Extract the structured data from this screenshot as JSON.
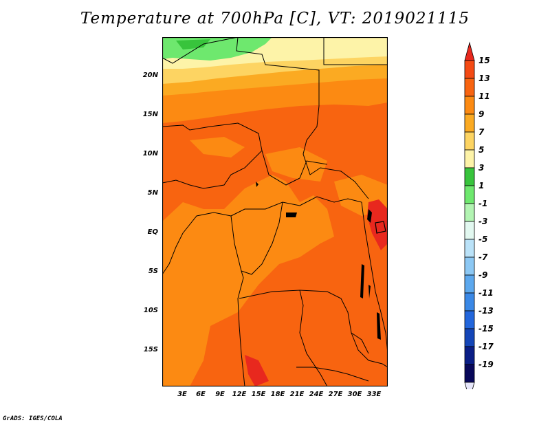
{
  "title": "Temperature at 700hPa [C], VT: 2019021115",
  "credit": "GrADS: IGES/COLA",
  "lat_labels": [
    "20N",
    "15N",
    "10N",
    "5N",
    "EQ",
    "5S",
    "10S",
    "15S"
  ],
  "lon_labels": [
    "3E",
    "6E",
    "9E",
    "12E",
    "15E",
    "18E",
    "21E",
    "24E",
    "27E",
    "30E",
    "33E"
  ],
  "colorbar": {
    "levels": [
      "15",
      "13",
      "11",
      "9",
      "7",
      "5",
      "3",
      "1",
      "-1",
      "-3",
      "-5",
      "-7",
      "-9",
      "-11",
      "-13",
      "-15",
      "-17",
      "-19"
    ],
    "colors": [
      "#e8281e",
      "#f44a14",
      "#f86410",
      "#fc8a12",
      "#fbaa22",
      "#fdd462",
      "#fdf3a8",
      "#38c43c",
      "#6ee86e",
      "#b2f4b2",
      "#e2f8f0",
      "#bae2f8",
      "#8cc8f4",
      "#5ca8ee",
      "#3a88e6",
      "#2266dc",
      "#1446b8",
      "#0a1e86",
      "#08085a"
    ],
    "under_color": "#e6e6fa",
    "over_color": "#e8281e"
  },
  "map_colors": {
    "warm": "#f86410",
    "mid": "#fc8a12",
    "cool": "#fbaa22",
    "pale": "#fdd462",
    "paler": "#fdf3a8",
    "green": "#6ee86e",
    "dkgreen": "#38c43c",
    "hot": "#e8281e"
  }
}
